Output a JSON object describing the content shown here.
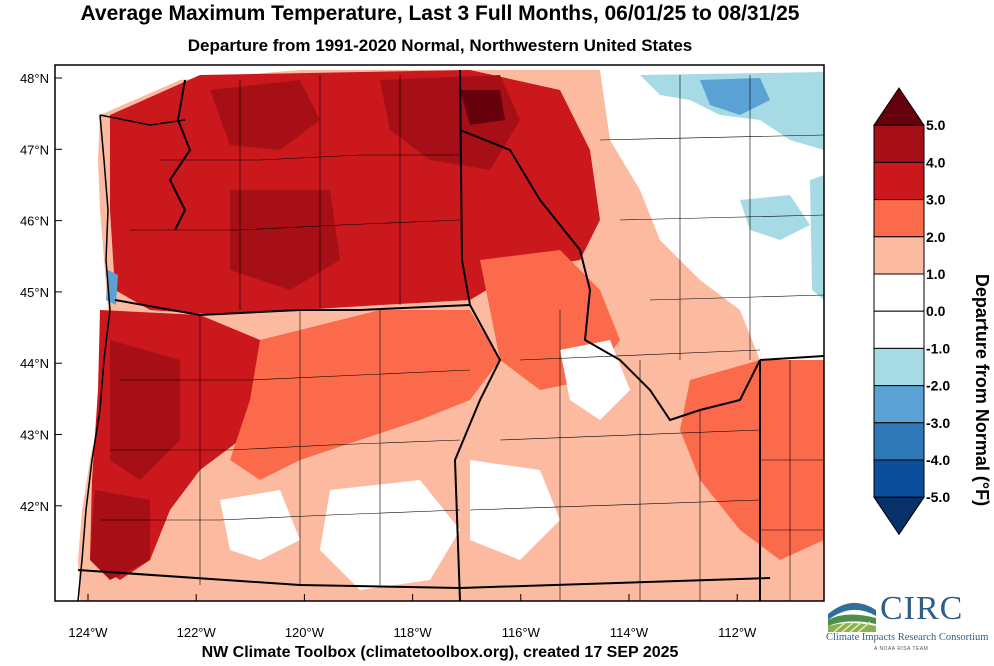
{
  "title": "Average Maximum Temperature, Last 3 Full Months, 06/01/25 to 08/31/25",
  "subtitle": "Departure from 1991-2020 Normal, Northwestern United States",
  "footer": "NW Climate Toolbox (climatetoolbox.org), created 17 SEP 2025",
  "map": {
    "latitude_labels": [
      "48°N",
      "47°N",
      "46°N",
      "45°N",
      "44°N",
      "43°N",
      "42°N"
    ],
    "longitude_labels": [
      "124°W",
      "122°W",
      "120°W",
      "118°W",
      "116°W",
      "114°W",
      "112°W"
    ],
    "lat_range": [
      41.5,
      49.0
    ],
    "lon_range": [
      -124.6,
      -110.2
    ]
  },
  "colorbar": {
    "title": "Departure from Normal (°F)",
    "labels": [
      "5.0",
      "4.0",
      "3.0",
      "2.0",
      "1.0",
      "0.0",
      "-1.0",
      "-2.0",
      "-3.0",
      "-4.0",
      "-5.0"
    ],
    "colors": [
      "#67000d",
      "#a50f15",
      "#cb181d",
      "#fb6a4a",
      "#fcbba1",
      "#ffffff",
      "#ffffff",
      "#a6dbe6",
      "#5aa2d3",
      "#2e78b8",
      "#0b4f9c",
      "#08306b"
    ]
  },
  "logo": {
    "name": "CIRC",
    "subtitle": "Climate Impacts Research Consortium",
    "tagline": "A NOAA RISA TEAM"
  }
}
